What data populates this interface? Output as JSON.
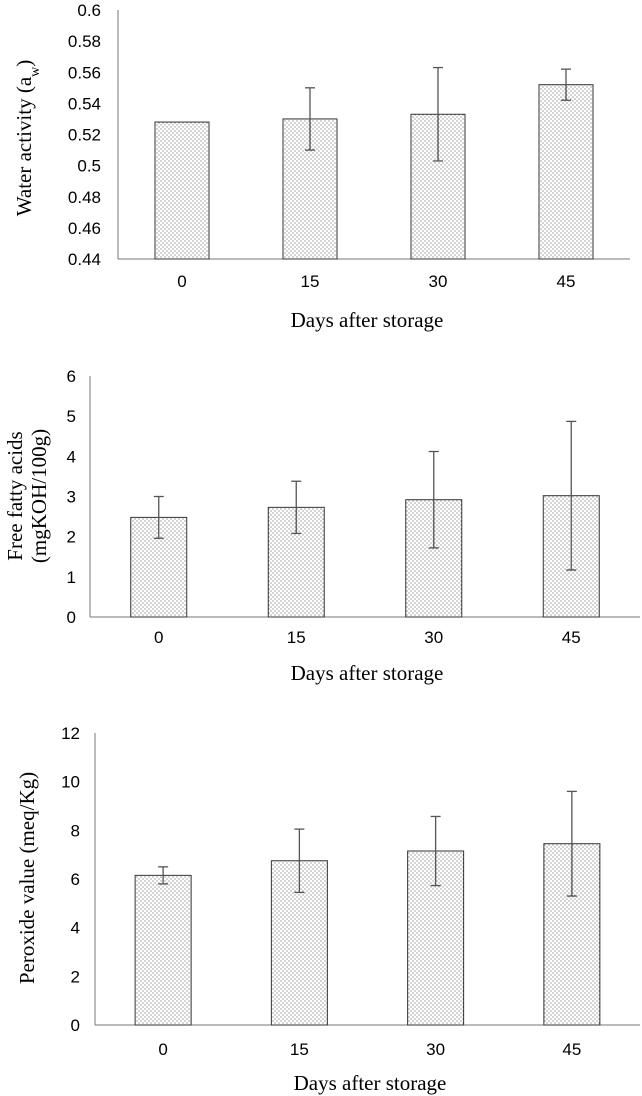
{
  "chart_data": [
    {
      "type": "bar",
      "categories": [
        "0",
        "15",
        "30",
        "45"
      ],
      "values": [
        0.528,
        0.53,
        0.533,
        0.552
      ],
      "errors": [
        0.0,
        0.02,
        0.03,
        0.01
      ],
      "ylim": [
        0.44,
        0.6
      ],
      "yticks": [
        "0.44",
        "0.46",
        "0.48",
        "0.5",
        "0.52",
        "0.54",
        "0.56",
        "0.58",
        "0.6"
      ],
      "xlabel": "Days after storage",
      "ylabel": {
        "main": "Water activity (a",
        "subscript": "w",
        "suffix": ")"
      },
      "grid": false
    },
    {
      "type": "bar",
      "categories": [
        "0",
        "15",
        "30",
        "45"
      ],
      "values": [
        2.48,
        2.73,
        2.92,
        3.02
      ],
      "errors": [
        0.52,
        0.65,
        1.2,
        1.85
      ],
      "ylim": [
        0,
        6
      ],
      "yticks": [
        "0",
        "1",
        "2",
        "3",
        "4",
        "5",
        "6"
      ],
      "xlabel": "Days after storage",
      "ylabel": {
        "line1": "Free fatty acids",
        "line2": "(mgKOH/100g)"
      },
      "grid": false
    },
    {
      "type": "bar",
      "categories": [
        "0",
        "15",
        "30",
        "45"
      ],
      "values": [
        6.15,
        6.75,
        7.15,
        7.45
      ],
      "errors": [
        0.35,
        1.3,
        1.42,
        2.15
      ],
      "ylim": [
        0,
        12
      ],
      "yticks": [
        "0",
        "2",
        "4",
        "6",
        "8",
        "10",
        "12"
      ],
      "xlabel": "Days after storage",
      "ylabel": {
        "main": "Peroxide value (meq/Kg)"
      },
      "grid": false
    }
  ]
}
